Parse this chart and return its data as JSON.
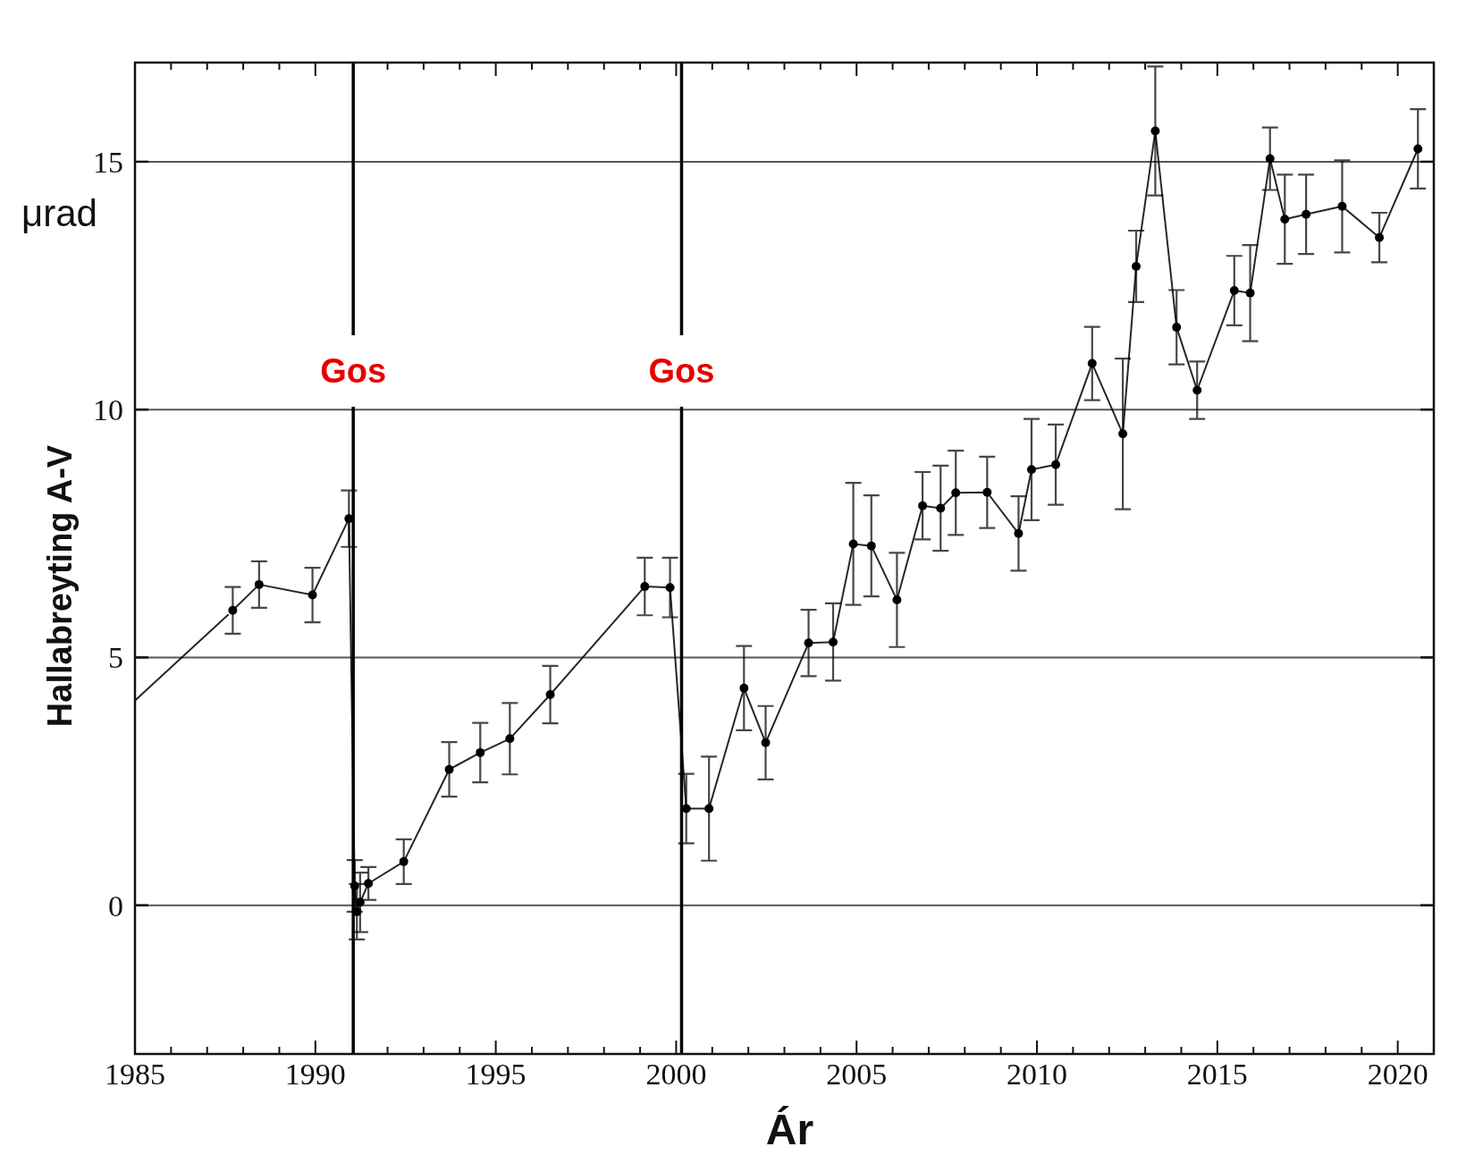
{
  "chart_data": {
    "type": "line",
    "xlabel": "Ár",
    "ylabel": "Hallabreyting A-V",
    "annotations": [
      "μrad"
    ],
    "xlim": [
      1985,
      2021
    ],
    "ylim": [
      -3,
      17
    ],
    "xticks": [
      1985,
      {
        "value": 1986,
        "label": null
      },
      {
        "value": 1987,
        "label": null
      },
      {
        "value": 1988,
        "label": null
      },
      {
        "value": 1989,
        "label": null
      },
      1990,
      {
        "value": 1992,
        "label": null
      },
      {
        "value": 1993,
        "label": null
      },
      {
        "value": 1994,
        "label": null
      },
      1995,
      {
        "value": 1996,
        "label": null
      },
      {
        "value": 1997,
        "label": null
      },
      {
        "value": 1998,
        "label": null
      },
      {
        "value": 1999,
        "label": null
      },
      2000,
      {
        "value": 2001,
        "label": null
      },
      {
        "value": 2002,
        "label": null
      },
      {
        "value": 2003,
        "label": null
      },
      {
        "value": 2004,
        "label": null
      },
      2005,
      {
        "value": 2006,
        "label": null
      },
      {
        "value": 2007,
        "label": null
      },
      {
        "value": 2008,
        "label": null
      },
      {
        "value": 2009,
        "label": null
      },
      2010,
      {
        "value": 2011,
        "label": null
      },
      {
        "value": 2012,
        "label": null
      },
      {
        "value": 2013,
        "label": null
      },
      {
        "value": 2014,
        "label": null
      },
      2015,
      {
        "value": 2016,
        "label": null
      },
      {
        "value": 2017,
        "label": null
      },
      {
        "value": 2018,
        "label": null
      },
      {
        "value": 2019,
        "label": null
      },
      2020
    ],
    "yticks": [
      0,
      5,
      10,
      15
    ],
    "grid": "y",
    "marker": "circle",
    "series": [
      {
        "color": "#000000",
        "marker": "none",
        "x": [
          1985,
          1987.58
        ],
        "values": [
          4.13,
          5.86
        ]
      },
      {
        "color": "#000000",
        "x": [
          1987.71,
          1988.44,
          1989.92,
          1990.93,
          1991.09,
          1991.15,
          1991.24,
          1991.47,
          1992.45,
          1993.71,
          1994.57,
          1995.39,
          1996.51,
          1999.13,
          1999.83,
          2000.28,
          2000.91,
          2001.88,
          2002.48,
          2003.67,
          2004.35,
          2004.91,
          2005.41,
          2006.12,
          2006.83,
          2007.33,
          2007.75,
          2008.62,
          2009.49,
          2009.85,
          2010.52,
          2011.53,
          2012.38,
          2012.75,
          2013.28,
          2013.87,
          2014.44,
          2015.47,
          2015.91,
          2016.46,
          2016.87,
          2017.46,
          2018.46,
          2019.49,
          2020.56
        ],
        "values": [
          5.95,
          6.47,
          6.26,
          7.8,
          0.39,
          -0.13,
          0.06,
          0.44,
          0.88,
          2.74,
          3.08,
          3.36,
          4.25,
          6.43,
          6.41,
          1.95,
          1.95,
          4.38,
          3.28,
          5.29,
          5.31,
          7.29,
          7.25,
          6.16,
          8.06,
          8.01,
          8.32,
          8.33,
          7.5,
          8.79,
          8.89,
          10.93,
          9.51,
          12.89,
          15.62,
          11.66,
          10.39,
          12.4,
          12.35,
          15.06,
          13.84,
          13.94,
          14.1,
          13.47,
          15.26
        ],
        "errors": [
          0.47,
          0.47,
          0.55,
          0.57,
          0.52,
          0.56,
          0.6,
          0.33,
          0.45,
          0.55,
          0.6,
          0.72,
          0.58,
          0.58,
          0.6,
          0.7,
          1.05,
          0.85,
          0.74,
          0.67,
          0.78,
          1.23,
          1.02,
          0.95,
          0.68,
          0.86,
          0.85,
          0.72,
          0.75,
          1.02,
          0.81,
          0.74,
          1.52,
          0.72,
          1.3,
          0.75,
          0.58,
          0.7,
          0.97,
          0.63,
          0.9,
          0.8,
          0.93,
          0.5,
          0.8
        ]
      }
    ],
    "ref_lines": [
      {
        "axis": "x",
        "value": 1991.05,
        "label": "Gos",
        "color": "#000000"
      },
      {
        "axis": "x",
        "value": 2000.15,
        "label": "Gos",
        "color": "#000000"
      }
    ]
  }
}
